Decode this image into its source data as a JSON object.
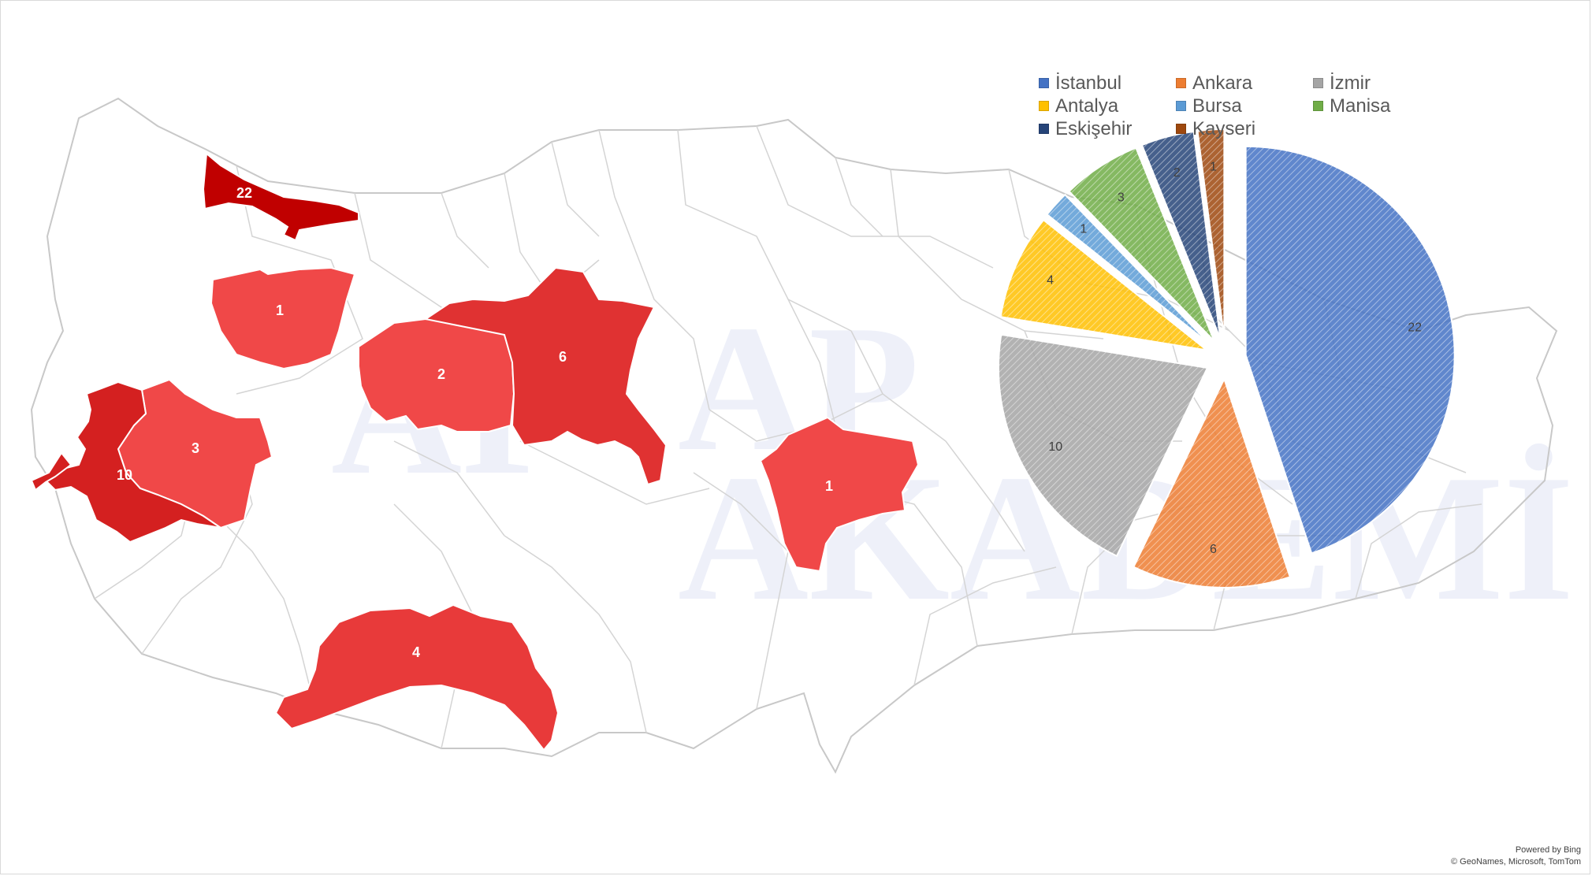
{
  "map": {
    "regions": [
      {
        "name": "İstanbul",
        "label": "22",
        "color": "#c00000"
      },
      {
        "name": "Bursa",
        "label": "1",
        "color": "#f04848"
      },
      {
        "name": "Eskişehir",
        "label": "2",
        "color": "#f04848"
      },
      {
        "name": "Ankara",
        "label": "6",
        "color": "#e03232"
      },
      {
        "name": "Manisa",
        "label": "3",
        "color": "#f04848"
      },
      {
        "name": "İzmir",
        "label": "10",
        "color": "#d42020"
      },
      {
        "name": "Antalya",
        "label": "4",
        "color": "#e83a3a"
      },
      {
        "name": "Kayseri",
        "label": "1",
        "color": "#f04848"
      }
    ]
  },
  "chart_data": {
    "type": "pie",
    "categories": [
      "İstanbul",
      "Ankara",
      "İzmir",
      "Antalya",
      "Bursa",
      "Manisa",
      "Eskişehir",
      "Kayseri"
    ],
    "values": [
      22,
      6,
      10,
      4,
      1,
      3,
      2,
      1
    ],
    "colors": [
      "#4472c4",
      "#ed7d31",
      "#a5a5a5",
      "#ffc000",
      "#5b9bd5",
      "#70ad47",
      "#264478",
      "#9e480e"
    ],
    "title": "",
    "legend": "top",
    "exploded": true,
    "pattern": "hatched"
  },
  "legend": {
    "items": [
      {
        "label": "İstanbul",
        "color": "#4472c4"
      },
      {
        "label": "Ankara",
        "color": "#ed7d31"
      },
      {
        "label": "İzmir",
        "color": "#a5a5a5"
      },
      {
        "label": "Antalya",
        "color": "#ffc000"
      },
      {
        "label": "Bursa",
        "color": "#5b9bd5"
      },
      {
        "label": "Manisa",
        "color": "#70ad47"
      },
      {
        "label": "Eskişehir",
        "color": "#264478"
      },
      {
        "label": "Kayseri",
        "color": "#9e480e"
      }
    ]
  },
  "attribution": {
    "line1": "Powered by Bing",
    "line2": "© GeoNames, Microsoft, TomTom"
  }
}
